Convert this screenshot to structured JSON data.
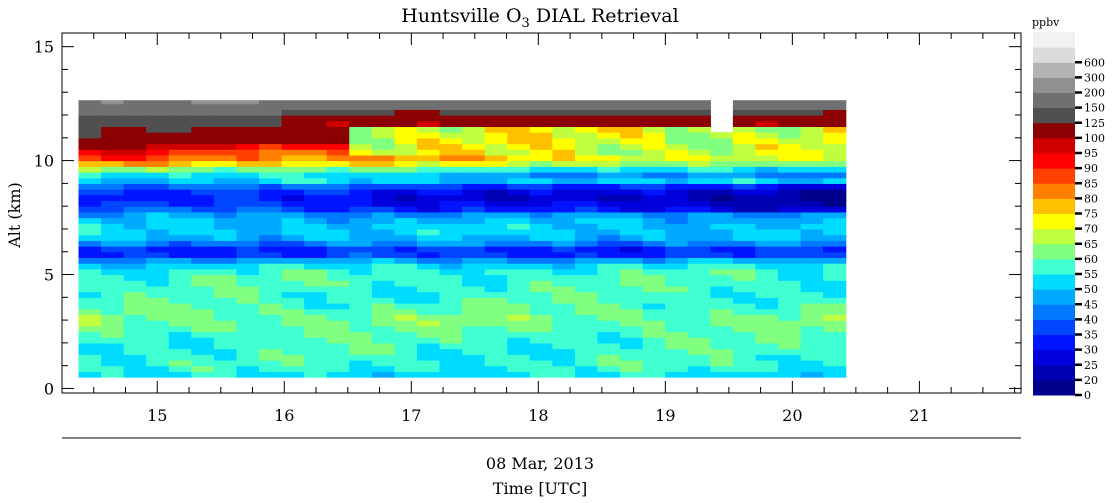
{
  "chart_data": {
    "type": "heatmap",
    "title_main": "Huntsville O",
    "title_sub": "3",
    "title_rest": " DIAL Retrieval",
    "ylabel": "Alt (km)",
    "xlabel": "Time [UTC]",
    "date_label": "08 Mar, 2013",
    "xlim": [
      14.25,
      21.8
    ],
    "ylim": [
      -0.2,
      15.6
    ],
    "xticks": [
      "15",
      "16",
      "17",
      "18",
      "19",
      "20",
      "21"
    ],
    "yticks": [
      "0",
      "5",
      "10",
      "15"
    ],
    "data_extent": {
      "x": [
        14.38,
        20.42
      ],
      "y": [
        0.5,
        12.65
      ]
    },
    "missing_gap": {
      "x": [
        19.42,
        19.58
      ],
      "y_above": 11.2
    },
    "colorbar_unit": "ppbv",
    "colorbar_levels": [
      {
        "label": "0",
        "color": "#00008b"
      },
      {
        "label": "20",
        "color": "#0000b3"
      },
      {
        "label": "25",
        "color": "#0000dc"
      },
      {
        "label": "30",
        "color": "#0014ff"
      },
      {
        "label": "35",
        "color": "#0046ff"
      },
      {
        "label": "40",
        "color": "#0078ff"
      },
      {
        "label": "45",
        "color": "#00aaff"
      },
      {
        "label": "50",
        "color": "#00dcff"
      },
      {
        "label": "55",
        "color": "#40ffd0"
      },
      {
        "label": "60",
        "color": "#80ff80"
      },
      {
        "label": "65",
        "color": "#c0ff40"
      },
      {
        "label": "70",
        "color": "#ffff00"
      },
      {
        "label": "75",
        "color": "#ffc000"
      },
      {
        "label": "80",
        "color": "#ff8000"
      },
      {
        "label": "85",
        "color": "#ff4000"
      },
      {
        "label": "90",
        "color": "#ff0000"
      },
      {
        "label": "95",
        "color": "#d00000"
      },
      {
        "label": "100",
        "color": "#8b0000"
      },
      {
        "label": "125",
        "color": "#505050"
      },
      {
        "label": "150",
        "color": "#707070"
      },
      {
        "label": "200",
        "color": "#909090"
      },
      {
        "label": "300",
        "color": "#b4b4b4"
      },
      {
        "label": "600",
        "color": "#dcdcdc"
      },
      {
        "label": "",
        "color": "#f2f2f2"
      }
    ],
    "profile_notes": "Ozone (ppbv) vs altitude: ~55-60 near surface to 5 km, ~50 5-6 km, ~30 at 6 km, ~50 6.5-7.5 km, ~35 at 8 km, transition to 90-100 near 10-11 km early, stratospheric >125 above 11 km",
    "profile": [
      {
        "alt": 0.5,
        "o3": 52
      },
      {
        "alt": 1.0,
        "o3": 57
      },
      {
        "alt": 2.0,
        "o3": 57
      },
      {
        "alt": 3.0,
        "o3": 62
      },
      {
        "alt": 4.0,
        "o3": 57
      },
      {
        "alt": 5.0,
        "o3": 58
      },
      {
        "alt": 5.5,
        "o3": 52
      },
      {
        "alt": 6.0,
        "o3": 30
      },
      {
        "alt": 6.5,
        "o3": 48
      },
      {
        "alt": 7.0,
        "o3": 52
      },
      {
        "alt": 7.5,
        "o3": 48
      },
      {
        "alt": 8.0,
        "o3": 38
      },
      {
        "alt": 8.5,
        "o3": 33
      },
      {
        "alt": 9.0,
        "o3": 48
      },
      {
        "alt": 9.5,
        "o3": 60
      },
      {
        "alt": 10.0,
        "o3": 88
      },
      {
        "alt": 10.5,
        "o3": 95
      },
      {
        "alt": 11.0,
        "o3": 120
      },
      {
        "alt": 11.5,
        "o3": 130
      },
      {
        "alt": 12.0,
        "o3": 145
      },
      {
        "alt": 12.5,
        "o3": 200
      }
    ]
  }
}
